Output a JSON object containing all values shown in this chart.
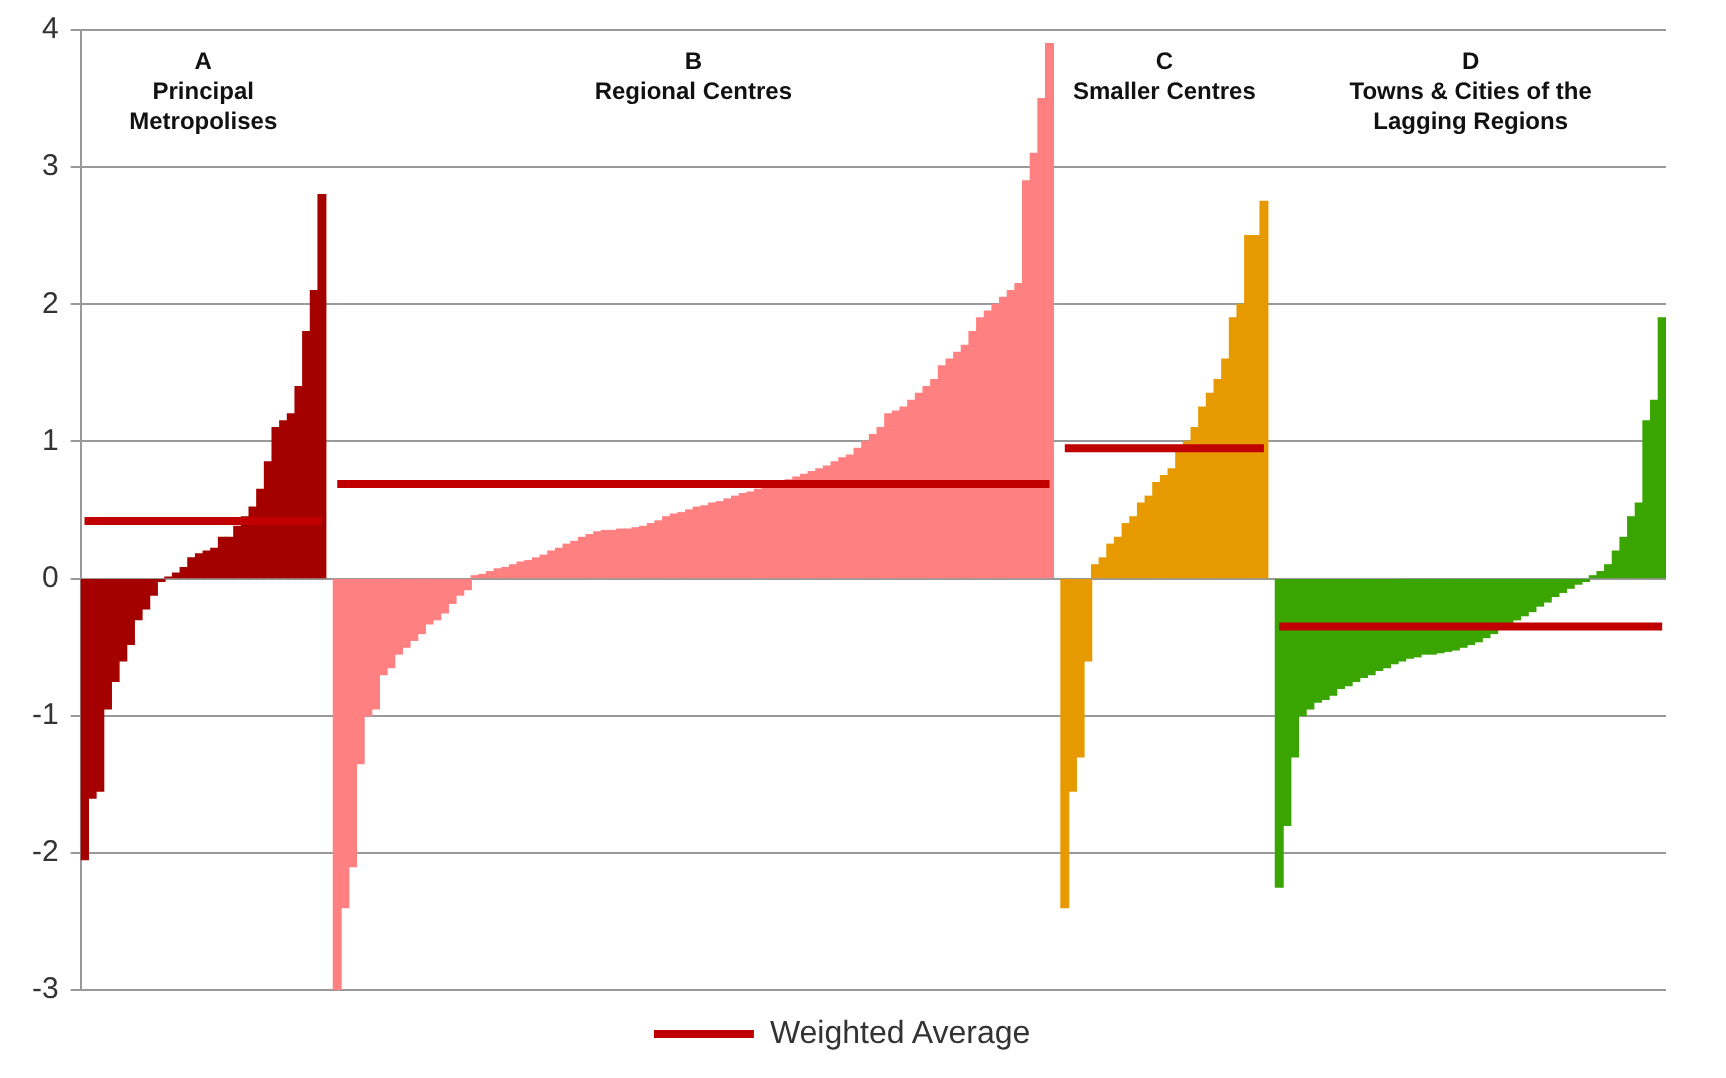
{
  "chart_data": {
    "type": "bar",
    "categories": [
      null,
      null,
      null,
      null,
      null,
      null,
      null,
      null,
      null,
      null,
      null,
      null,
      null,
      null,
      null,
      null,
      null,
      null,
      null,
      null,
      null,
      null,
      null,
      null,
      null,
      null,
      null,
      null,
      null,
      null,
      null,
      null,
      null,
      null,
      null,
      null,
      null,
      null,
      null,
      null,
      null,
      null,
      null,
      null,
      null,
      null,
      null,
      null,
      null,
      null,
      null,
      null,
      null,
      null,
      null,
      null,
      null,
      null,
      null,
      null,
      null,
      null,
      null,
      null,
      null,
      null,
      null,
      null,
      null,
      null,
      null,
      null,
      null,
      null,
      null,
      null,
      null,
      null,
      null,
      null,
      null,
      null,
      null,
      null,
      null,
      null,
      null,
      null,
      null,
      null,
      null,
      null,
      null,
      null,
      null,
      null,
      null,
      null,
      null,
      null,
      null,
      null,
      null,
      null,
      null,
      null,
      null,
      null,
      null,
      null,
      null,
      null,
      null,
      null,
      null,
      null,
      null,
      null,
      null,
      null,
      null,
      null,
      null,
      null,
      null,
      null,
      null,
      null,
      null,
      null,
      null,
      null,
      null,
      null,
      null,
      null,
      null,
      null,
      null,
      null,
      null,
      null,
      null,
      null,
      null,
      null,
      null,
      null,
      null,
      null,
      null,
      null,
      null,
      null,
      null,
      null,
      null,
      null,
      null,
      null,
      null,
      null,
      null,
      null,
      null,
      null,
      null,
      null,
      null,
      null,
      null,
      null,
      null,
      null,
      null,
      null,
      null,
      null,
      null,
      null,
      null,
      null,
      null,
      null,
      null,
      null,
      null,
      null,
      null,
      null,
      null,
      null,
      null,
      null,
      null,
      null,
      null,
      null,
      null,
      null,
      null,
      null,
      null,
      null,
      null,
      null,
      null
    ],
    "series": [
      {
        "values": [
          -2.05,
          -1.6,
          -1.55,
          -0.95,
          -0.75,
          -0.6,
          -0.48,
          -0.3,
          -0.22,
          -0.12,
          -0.02,
          0.01,
          0.04,
          0.08,
          0.15,
          0.18,
          0.2,
          0.22,
          0.3,
          0.3,
          0.38,
          0.45,
          0.52,
          0.65,
          0.85,
          1.1,
          1.15,
          1.2,
          1.4,
          1.8,
          2.1,
          2.8,
          null,
          -3.0,
          -2.4,
          -2.1,
          -1.35,
          -1.0,
          -0.95,
          -0.7,
          -0.65,
          -0.55,
          -0.5,
          -0.45,
          -0.4,
          -0.33,
          -0.3,
          -0.25,
          -0.18,
          -0.12,
          -0.08,
          0.02,
          0.03,
          0.05,
          0.07,
          0.08,
          0.1,
          0.12,
          0.13,
          0.15,
          0.17,
          0.2,
          0.22,
          0.25,
          0.27,
          0.3,
          0.32,
          0.34,
          0.35,
          0.35,
          0.36,
          0.36,
          0.37,
          0.38,
          0.4,
          0.42,
          0.45,
          0.47,
          0.48,
          0.5,
          0.52,
          0.53,
          0.55,
          0.56,
          0.58,
          0.6,
          0.62,
          0.63,
          0.65,
          0.66,
          0.68,
          0.7,
          0.72,
          0.74,
          0.76,
          0.78,
          0.8,
          0.82,
          0.85,
          0.88,
          0.9,
          0.95,
          1.0,
          1.05,
          1.1,
          1.2,
          1.22,
          1.25,
          1.3,
          1.35,
          1.4,
          1.45,
          1.55,
          1.6,
          1.65,
          1.7,
          1.8,
          1.9,
          1.95,
          2.0,
          2.05,
          2.1,
          2.15,
          2.9,
          3.1,
          3.5,
          3.9,
          null,
          -2.4,
          -1.55,
          -1.3,
          -0.6,
          0.1,
          0.15,
          0.25,
          0.3,
          0.4,
          0.45,
          0.55,
          0.6,
          0.7,
          0.75,
          0.8,
          0.95,
          1.0,
          1.1,
          1.25,
          1.35,
          1.45,
          1.6,
          1.9,
          2.0,
          2.5,
          2.5,
          2.75,
          null,
          -2.25,
          -1.8,
          -1.3,
          -1.0,
          -0.95,
          -0.9,
          -0.88,
          -0.85,
          -0.8,
          -0.78,
          -0.75,
          -0.72,
          -0.7,
          -0.67,
          -0.65,
          -0.62,
          -0.6,
          -0.58,
          -0.57,
          -0.55,
          -0.55,
          -0.54,
          -0.53,
          -0.52,
          -0.5,
          -0.48,
          -0.46,
          -0.43,
          -0.4,
          -0.37,
          -0.33,
          -0.3,
          -0.27,
          -0.24,
          -0.2,
          -0.17,
          -0.13,
          -0.1,
          -0.07,
          -0.04,
          -0.02,
          0.02,
          0.05,
          0.1,
          0.2,
          0.3,
          0.45,
          0.55,
          1.15,
          1.3,
          1.9
        ],
        "colors": [
          "#a50000",
          "#a50000",
          "#a50000",
          "#a50000",
          "#a50000",
          "#a50000",
          "#a50000",
          "#a50000",
          "#a50000",
          "#a50000",
          "#a50000",
          "#a50000",
          "#a50000",
          "#a50000",
          "#a50000",
          "#a50000",
          "#a50000",
          "#a50000",
          "#a50000",
          "#a50000",
          "#a50000",
          "#a50000",
          "#a50000",
          "#a50000",
          "#a50000",
          "#a50000",
          "#a50000",
          "#a50000",
          "#a50000",
          "#a50000",
          "#a50000",
          "#a50000",
          "#ff8080",
          "#ff8080",
          "#ff8080",
          "#ff8080",
          "#ff8080",
          "#ff8080",
          "#ff8080",
          "#ff8080",
          "#ff8080",
          "#ff8080",
          "#ff8080",
          "#ff8080",
          "#ff8080",
          "#ff8080",
          "#ff8080",
          "#ff8080",
          "#ff8080",
          "#ff8080",
          "#ff8080",
          "#ff8080",
          "#ff8080",
          "#ff8080",
          "#ff8080",
          "#ff8080",
          "#ff8080",
          "#ff8080",
          "#ff8080",
          "#ff8080",
          "#ff8080",
          "#ff8080",
          "#ff8080",
          "#ff8080",
          "#ff8080",
          "#ff8080",
          "#ff8080",
          "#ff8080",
          "#ff8080",
          "#ff8080",
          "#ff8080",
          "#ff8080",
          "#ff8080",
          "#ff8080",
          "#ff8080",
          "#ff8080",
          "#ff8080",
          "#ff8080",
          "#ff8080",
          "#ff8080",
          "#ff8080",
          "#ff8080",
          "#ff8080",
          "#ff8080",
          "#ff8080",
          "#ff8080",
          "#ff8080",
          "#ff8080",
          "#ff8080",
          "#ff8080",
          "#ff8080",
          "#ff8080",
          "#ff8080",
          "#ff8080",
          "#ff8080",
          "#ff8080",
          "#ff8080",
          "#ff8080",
          "#ff8080",
          "#ff8080",
          "#ff8080",
          "#ff8080",
          "#ff8080",
          "#ff8080",
          "#ff8080",
          "#ff8080",
          "#ff8080",
          "#ff8080",
          "#ff8080",
          "#ff8080",
          "#ff8080",
          "#ff8080",
          "#ff8080",
          "#ff8080",
          "#ff8080",
          "#ff8080",
          "#ff8080",
          "#ff8080",
          "#ff8080",
          "#ff8080",
          "#ff8080",
          "#ff8080",
          "#ff8080",
          "#ff8080",
          "#ff8080",
          "#ff8080",
          "#ff8080",
          "#e69a00",
          "#e69a00",
          "#e69a00",
          "#e69a00",
          "#e69a00",
          "#e69a00",
          "#e69a00",
          "#e69a00",
          "#e69a00",
          "#e69a00",
          "#e69a00",
          "#e69a00",
          "#e69a00",
          "#e69a00",
          "#e69a00",
          "#e69a00",
          "#e69a00",
          "#e69a00",
          "#e69a00",
          "#e69a00",
          "#e69a00",
          "#e69a00",
          "#e69a00",
          "#e69a00",
          "#e69a00",
          "#e69a00",
          "#e69a00",
          "#e69a00",
          "#3aa500",
          "#3aa500",
          "#3aa500",
          "#3aa500",
          "#3aa500",
          "#3aa500",
          "#3aa500",
          "#3aa500",
          "#3aa500",
          "#3aa500",
          "#3aa500",
          "#3aa500",
          "#3aa500",
          "#3aa500",
          "#3aa500",
          "#3aa500",
          "#3aa500",
          "#3aa500",
          "#3aa500",
          "#3aa500",
          "#3aa500",
          "#3aa500",
          "#3aa500",
          "#3aa500",
          "#3aa500",
          "#3aa500",
          "#3aa500",
          "#3aa500",
          "#3aa500",
          "#3aa500",
          "#3aa500",
          "#3aa500",
          "#3aa500",
          "#3aa500",
          "#3aa500",
          "#3aa500",
          "#3aa500",
          "#3aa500",
          "#3aa500",
          "#3aa500",
          "#3aa500",
          "#3aa500",
          "#3aa500",
          "#3aa500",
          "#3aa500",
          "#3aa500",
          "#3aa500",
          "#3aa500",
          "#3aa500",
          "#3aa500",
          "#3aa500",
          "#3aa500"
        ]
      },
      {
        "type": "line",
        "name": "Weighted Average",
        "color": "#c00000",
        "values": [
          0.42,
          0.42,
          0.42,
          0.42,
          0.42,
          0.42,
          0.42,
          0.42,
          0.42,
          0.42,
          0.42,
          0.42,
          0.42,
          0.42,
          0.42,
          0.42,
          0.42,
          0.42,
          0.42,
          0.42,
          0.42,
          0.42,
          0.42,
          0.42,
          0.42,
          0.42,
          0.42,
          0.42,
          0.42,
          0.42,
          0.42,
          0.42,
          null,
          0.69,
          0.69,
          0.69,
          0.69,
          0.69,
          0.69,
          0.69,
          0.69,
          0.69,
          0.69,
          0.69,
          0.69,
          0.69,
          0.69,
          0.69,
          0.69,
          0.69,
          0.69,
          0.69,
          0.69,
          0.69,
          0.69,
          0.69,
          0.69,
          0.69,
          0.69,
          0.69,
          0.69,
          0.69,
          0.69,
          0.69,
          0.69,
          0.69,
          0.69,
          0.69,
          0.69,
          0.69,
          0.69,
          0.69,
          0.69,
          0.69,
          0.69,
          0.69,
          0.69,
          0.69,
          0.69,
          0.69,
          0.69,
          0.69,
          0.69,
          0.69,
          0.69,
          0.69,
          0.69,
          0.69,
          0.69,
          0.69,
          0.69,
          0.69,
          0.69,
          0.69,
          0.69,
          0.69,
          0.69,
          0.69,
          0.69,
          0.69,
          0.69,
          0.69,
          0.69,
          0.69,
          0.69,
          0.69,
          0.69,
          0.69,
          0.69,
          0.69,
          0.69,
          0.69,
          0.69,
          0.69,
          0.69,
          0.69,
          0.69,
          0.69,
          0.69,
          0.69,
          0.69,
          0.69,
          0.69,
          0.69,
          0.69,
          0.69,
          0.69,
          null,
          0.95,
          0.95,
          0.95,
          0.95,
          0.95,
          0.95,
          0.95,
          0.95,
          0.95,
          0.95,
          0.95,
          0.95,
          0.95,
          0.95,
          0.95,
          0.95,
          0.95,
          0.95,
          0.95,
          0.95,
          0.95,
          0.95,
          0.95,
          0.95,
          0.95,
          0.95,
          0.95,
          null,
          -0.35,
          -0.35,
          -0.35,
          -0.35,
          -0.35,
          -0.35,
          -0.35,
          -0.35,
          -0.35,
          -0.35,
          -0.35,
          -0.35,
          -0.35,
          -0.35,
          -0.35,
          -0.35,
          -0.35,
          -0.35,
          -0.35,
          -0.35,
          -0.35,
          -0.35,
          -0.35,
          -0.35,
          -0.35,
          -0.35,
          -0.35,
          -0.35,
          -0.35,
          -0.35,
          -0.35,
          -0.35,
          -0.35,
          -0.35,
          -0.35,
          -0.35,
          -0.35,
          -0.35,
          -0.35,
          -0.35,
          -0.35,
          -0.35,
          -0.35,
          -0.35,
          -0.35,
          -0.35,
          -0.35,
          -0.35,
          -0.35,
          -0.35,
          -0.35
        ]
      }
    ],
    "annotations": [
      "A\nPrincipal\nMetropolises",
      "B\nRegional Centres",
      "C\nSmaller Centres",
      "D\nTowns & Cities of the\nLagging Regions"
    ],
    "ylim": [
      -3,
      4
    ],
    "yticks": [
      -3,
      -2,
      -1,
      0,
      1,
      2,
      3,
      4
    ],
    "grid": "y",
    "legend": "bottom",
    "tick_labels": "y",
    "marker": "none",
    "line_style": "solid"
  }
}
